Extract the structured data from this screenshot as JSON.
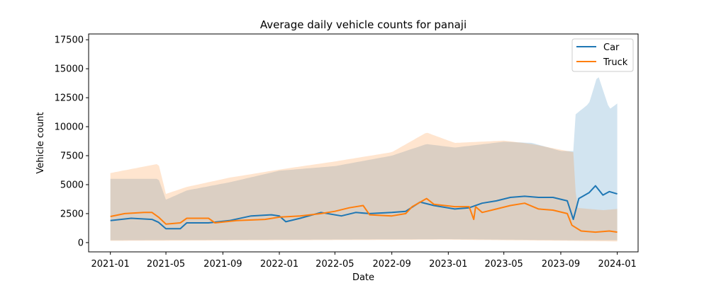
{
  "chart_data": {
    "type": "line",
    "title": "Average daily vehicle counts for panaji",
    "xlabel": "Date",
    "ylabel": "Vehicle count",
    "xlim": [
      "2020-11-15",
      "2024-02-15"
    ],
    "ylim": [
      -800,
      18000
    ],
    "x_ticks": [
      "2021-01",
      "2021-05",
      "2021-09",
      "2022-01",
      "2022-05",
      "2022-09",
      "2023-01",
      "2023-05",
      "2023-09",
      "2024-01"
    ],
    "y_ticks": [
      0,
      2500,
      5000,
      7500,
      10000,
      12500,
      15000,
      17500
    ],
    "y_tick_labels": [
      "0",
      "2500",
      "5000",
      "7500",
      "10000",
      "12500",
      "15000",
      "17500"
    ],
    "grid": false,
    "legend_position": "top-right",
    "series": [
      {
        "name": "Car",
        "color": "#1f77b4",
        "band_color": "#1f77b4",
        "band_opacity": 0.2,
        "points": [
          [
            "2021-01-01",
            1900
          ],
          [
            "2021-02-15",
            2100
          ],
          [
            "2021-04-01",
            2000
          ],
          [
            "2021-04-15",
            1750
          ],
          [
            "2021-05-01",
            1200
          ],
          [
            "2021-06-01",
            1200
          ],
          [
            "2021-06-15",
            1700
          ],
          [
            "2021-08-01",
            1700
          ],
          [
            "2021-09-15",
            1900
          ],
          [
            "2021-11-01",
            2300
          ],
          [
            "2021-12-15",
            2400
          ],
          [
            "2022-01-01",
            2300
          ],
          [
            "2022-01-15",
            1800
          ],
          [
            "2022-02-15",
            2100
          ],
          [
            "2022-04-01",
            2600
          ],
          [
            "2022-05-15",
            2300
          ],
          [
            "2022-06-15",
            2600
          ],
          [
            "2022-07-15",
            2500
          ],
          [
            "2022-09-01",
            2600
          ],
          [
            "2022-10-01",
            2700
          ],
          [
            "2022-11-01",
            3500
          ],
          [
            "2022-12-01",
            3200
          ],
          [
            "2023-01-15",
            2900
          ],
          [
            "2023-02-15",
            3000
          ],
          [
            "2023-03-15",
            3400
          ],
          [
            "2023-04-15",
            3600
          ],
          [
            "2023-05-15",
            3900
          ],
          [
            "2023-06-15",
            4000
          ],
          [
            "2023-07-15",
            3900
          ],
          [
            "2023-08-15",
            3900
          ],
          [
            "2023-09-15",
            3600
          ],
          [
            "2023-09-28",
            2000
          ],
          [
            "2023-10-10",
            3800
          ],
          [
            "2023-11-01",
            4300
          ],
          [
            "2023-11-15",
            4900
          ],
          [
            "2023-12-01",
            4100
          ],
          [
            "2023-12-15",
            4400
          ],
          [
            "2024-01-01",
            4200
          ]
        ],
        "band_upper": [
          [
            "2021-01-01",
            5500
          ],
          [
            "2021-04-15",
            5500
          ],
          [
            "2021-05-01",
            3700
          ],
          [
            "2021-06-15",
            4500
          ],
          [
            "2021-09-15",
            5200
          ],
          [
            "2022-01-01",
            6200
          ],
          [
            "2022-05-01",
            6600
          ],
          [
            "2022-09-01",
            7500
          ],
          [
            "2022-11-15",
            8500
          ],
          [
            "2023-01-15",
            8200
          ],
          [
            "2023-05-01",
            8700
          ],
          [
            "2023-07-01",
            8600
          ],
          [
            "2023-09-01",
            7900
          ],
          [
            "2023-09-28",
            7900
          ],
          [
            "2023-10-01",
            11000
          ],
          [
            "2023-11-01",
            12000
          ],
          [
            "2023-11-20",
            14500
          ],
          [
            "2023-12-15",
            11500
          ],
          [
            "2024-01-01",
            12000
          ]
        ],
        "band_lower": [
          [
            "2021-01-01",
            200
          ],
          [
            "2022-01-01",
            250
          ],
          [
            "2023-01-01",
            300
          ],
          [
            "2023-09-28",
            200
          ],
          [
            "2024-01-01",
            200
          ]
        ]
      },
      {
        "name": "Truck",
        "color": "#ff7f0e",
        "band_color": "#ff7f0e",
        "band_opacity": 0.2,
        "points": [
          [
            "2021-01-01",
            2250
          ],
          [
            "2021-02-01",
            2500
          ],
          [
            "2021-03-15",
            2600
          ],
          [
            "2021-04-01",
            2600
          ],
          [
            "2021-04-15",
            2200
          ],
          [
            "2021-05-01",
            1600
          ],
          [
            "2021-06-01",
            1700
          ],
          [
            "2021-06-15",
            2100
          ],
          [
            "2021-08-01",
            2100
          ],
          [
            "2021-08-15",
            1700
          ],
          [
            "2021-10-01",
            1900
          ],
          [
            "2021-12-01",
            2000
          ],
          [
            "2022-01-01",
            2200
          ],
          [
            "2022-02-15",
            2300
          ],
          [
            "2022-04-01",
            2500
          ],
          [
            "2022-05-01",
            2700
          ],
          [
            "2022-06-01",
            3000
          ],
          [
            "2022-07-01",
            3200
          ],
          [
            "2022-07-15",
            2400
          ],
          [
            "2022-09-01",
            2300
          ],
          [
            "2022-10-01",
            2500
          ],
          [
            "2022-10-15",
            3100
          ],
          [
            "2022-11-15",
            3800
          ],
          [
            "2022-12-01",
            3300
          ],
          [
            "2023-01-15",
            3100
          ],
          [
            "2023-02-15",
            3100
          ],
          [
            "2023-02-25",
            2000
          ],
          [
            "2023-03-01",
            3100
          ],
          [
            "2023-03-15",
            2600
          ],
          [
            "2023-04-15",
            2900
          ],
          [
            "2023-05-15",
            3200
          ],
          [
            "2023-06-15",
            3400
          ],
          [
            "2023-07-15",
            2900
          ],
          [
            "2023-08-15",
            2800
          ],
          [
            "2023-09-15",
            2500
          ],
          [
            "2023-09-25",
            1500
          ],
          [
            "2023-10-15",
            1000
          ],
          [
            "2023-11-15",
            900
          ],
          [
            "2023-12-15",
            1000
          ],
          [
            "2024-01-01",
            900
          ]
        ],
        "band_upper": [
          [
            "2021-01-01",
            6000
          ],
          [
            "2021-04-15",
            6800
          ],
          [
            "2021-05-01",
            4200
          ],
          [
            "2021-06-15",
            4800
          ],
          [
            "2021-09-15",
            5600
          ],
          [
            "2022-01-01",
            6300
          ],
          [
            "2022-05-01",
            7000
          ],
          [
            "2022-09-01",
            7800
          ],
          [
            "2022-11-15",
            9500
          ],
          [
            "2023-01-15",
            8600
          ],
          [
            "2023-05-01",
            8800
          ],
          [
            "2023-07-01",
            8500
          ],
          [
            "2023-09-28",
            7800
          ],
          [
            "2023-10-05",
            3000
          ],
          [
            "2023-12-01",
            2800
          ],
          [
            "2024-01-01",
            2900
          ]
        ],
        "band_lower": [
          [
            "2021-01-01",
            150
          ],
          [
            "2022-01-01",
            200
          ],
          [
            "2023-01-01",
            250
          ],
          [
            "2023-09-28",
            150
          ],
          [
            "2024-01-01",
            100
          ]
        ]
      }
    ]
  }
}
